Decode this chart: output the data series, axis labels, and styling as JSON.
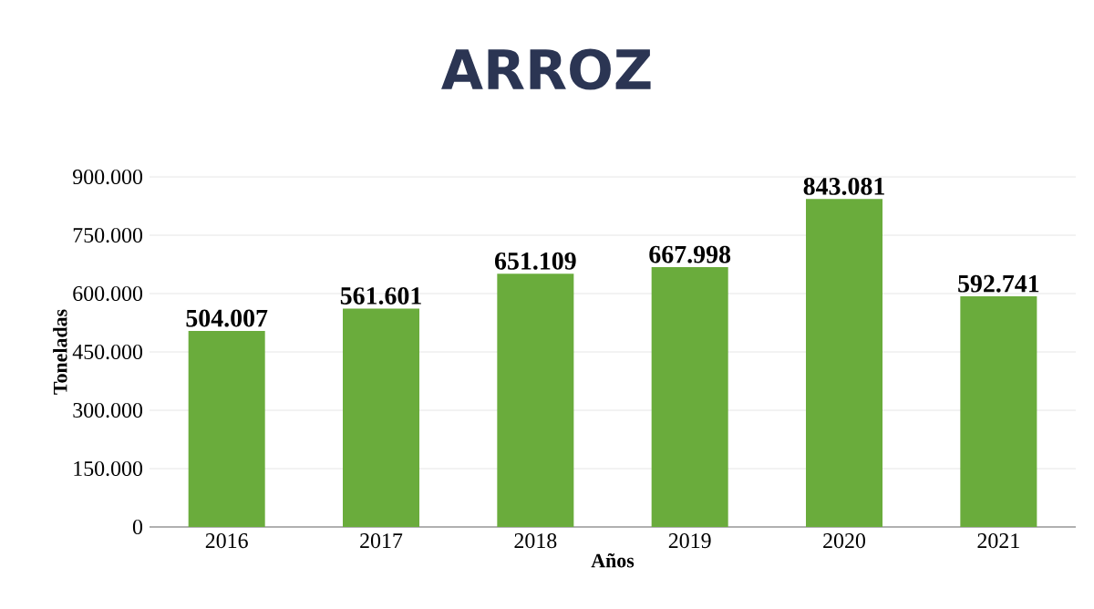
{
  "chart_data": {
    "type": "bar",
    "title": "ARROZ",
    "xlabel": "Años",
    "ylabel": "Toneladas",
    "categories": [
      "2016",
      "2017",
      "2018",
      "2019",
      "2020",
      "2021"
    ],
    "values": [
      504007,
      561601,
      651109,
      667998,
      843081,
      592741
    ],
    "value_labels": [
      "504.007",
      "561.601",
      "651.109",
      "667.998",
      "843.081",
      "592.741"
    ],
    "color": "#6aac3c",
    "ylim": [
      0,
      900000
    ],
    "yticks": [
      {
        "value": 0,
        "label": "0"
      },
      {
        "value": 150000,
        "label": "150.000"
      },
      {
        "value": 300000,
        "label": "300.000"
      },
      {
        "value": 450000,
        "label": "450.000"
      },
      {
        "value": 600000,
        "label": "600.000"
      },
      {
        "value": 750000,
        "label": "750.000"
      },
      {
        "value": 900000,
        "label": "900.000"
      }
    ],
    "grid": "y"
  }
}
